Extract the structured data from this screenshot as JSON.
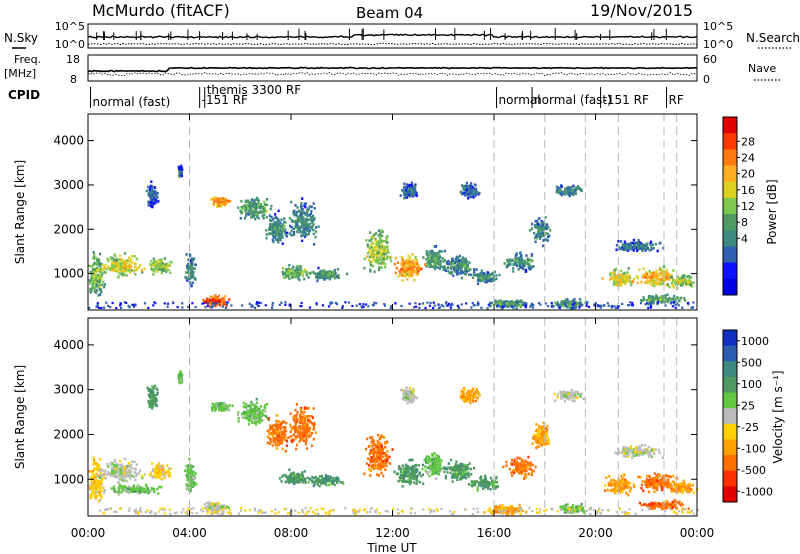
{
  "header": {
    "station": "McMurdo (fitACF)",
    "beam": "Beam 04",
    "date": "19/Nov/2015"
  },
  "noise_panel": {
    "left_label": "N.Sky",
    "right_label": "N.Search",
    "left_ticks": [
      "10^5",
      "10^0"
    ],
    "right_ticks": [
      "10^5",
      "10^0"
    ]
  },
  "freq_panel": {
    "left_label_1": "Freq.",
    "left_label_2": "[MHz]",
    "right_label": "Nave",
    "left_ticks": [
      "18",
      "8"
    ],
    "right_ticks": [
      "60",
      "0"
    ]
  },
  "cpid": {
    "label": "CPID",
    "entries": [
      {
        "text": "normal (fast)",
        "time": 0.1
      },
      {
        "text": "-151 RF",
        "time": 4.4
      },
      {
        "text": "themis 3300 RF",
        "time": 4.6
      },
      {
        "text": "normal",
        "time": 16.1
      },
      {
        "text": "normal (fast)",
        "time": 17.5
      },
      {
        "text": "-151 RF",
        "time": 20.2
      },
      {
        "text": "RF",
        "time": 22.8
      }
    ]
  },
  "time_axis": {
    "label": "Time UT",
    "ticks": [
      "00:00",
      "04:00",
      "08:00",
      "12:00",
      "16:00",
      "20:00",
      "00:00"
    ]
  },
  "chart_data": [
    {
      "type": "heatmap",
      "name": "power",
      "ylabel": "Slant Range [km]",
      "xlim_hours": [
        0,
        24
      ],
      "ylim_km": [
        180,
        4600
      ],
      "yticks": [
        1000,
        2000,
        3000,
        4000
      ],
      "colorbar": {
        "label": "Power [dB]",
        "ticks": [
          "28",
          "24",
          "20",
          "16",
          "12",
          "8",
          "4"
        ],
        "colors": [
          "#e00000",
          "#ff3a00",
          "#ff7a10",
          "#ffae20",
          "#dcd020",
          "#7cc850",
          "#4f9a62",
          "#3d8a80",
          "#3060b0",
          "#1010ff",
          "#0000e0"
        ]
      },
      "blobs": [
        {
          "t": 0.3,
          "r": 1000,
          "dt": 0.5,
          "dr": 700,
          "v": 16
        },
        {
          "t": 1.2,
          "r": 1200,
          "dt": 1.2,
          "dr": 350,
          "v": 20
        },
        {
          "t": 2.8,
          "r": 1200,
          "dt": 0.6,
          "dr": 250,
          "v": 18
        },
        {
          "t": 4.0,
          "r": 1100,
          "dt": 0.3,
          "dr": 500,
          "v": 12
        },
        {
          "t": 2.5,
          "r": 2800,
          "dt": 0.3,
          "dr": 400,
          "v": 10
        },
        {
          "t": 3.6,
          "r": 3300,
          "dt": 0.1,
          "dr": 200,
          "v": 10
        },
        {
          "t": 5.0,
          "r": 400,
          "dt": 0.7,
          "dr": 180,
          "v": 28
        },
        {
          "t": 5.2,
          "r": 2650,
          "dt": 0.6,
          "dr": 150,
          "v": 24
        },
        {
          "t": 6.5,
          "r": 2500,
          "dt": 0.9,
          "dr": 400,
          "v": 14
        },
        {
          "t": 7.4,
          "r": 2050,
          "dt": 0.6,
          "dr": 500,
          "v": 12
        },
        {
          "t": 8.4,
          "r": 2200,
          "dt": 0.8,
          "dr": 650,
          "v": 12
        },
        {
          "t": 8.1,
          "r": 1050,
          "dt": 0.8,
          "dr": 220,
          "v": 16
        },
        {
          "t": 9.3,
          "r": 1000,
          "dt": 1.0,
          "dr": 180,
          "v": 14
        },
        {
          "t": 11.4,
          "r": 1550,
          "dt": 0.7,
          "dr": 700,
          "v": 18
        },
        {
          "t": 12.6,
          "r": 1150,
          "dt": 0.8,
          "dr": 420,
          "v": 24
        },
        {
          "t": 13.6,
          "r": 1350,
          "dt": 0.6,
          "dr": 400,
          "v": 14
        },
        {
          "t": 14.6,
          "r": 1200,
          "dt": 0.8,
          "dr": 350,
          "v": 12
        },
        {
          "t": 15.6,
          "r": 950,
          "dt": 0.8,
          "dr": 230,
          "v": 12
        },
        {
          "t": 17.0,
          "r": 1300,
          "dt": 0.8,
          "dr": 300,
          "v": 12
        },
        {
          "t": 17.8,
          "r": 2000,
          "dt": 0.5,
          "dr": 400,
          "v": 12
        },
        {
          "t": 12.6,
          "r": 2900,
          "dt": 0.5,
          "dr": 250,
          "v": 10
        },
        {
          "t": 15.0,
          "r": 2900,
          "dt": 0.6,
          "dr": 250,
          "v": 10
        },
        {
          "t": 18.9,
          "r": 2900,
          "dt": 0.8,
          "dr": 180,
          "v": 12
        },
        {
          "t": 16.5,
          "r": 350,
          "dt": 1.2,
          "dr": 150,
          "v": 14
        },
        {
          "t": 19.0,
          "r": 350,
          "dt": 0.9,
          "dr": 150,
          "v": 14
        },
        {
          "t": 20.9,
          "r": 900,
          "dt": 0.8,
          "dr": 300,
          "v": 20
        },
        {
          "t": 22.4,
          "r": 950,
          "dt": 1.1,
          "dr": 300,
          "v": 22
        },
        {
          "t": 23.4,
          "r": 850,
          "dt": 0.7,
          "dr": 220,
          "v": 18
        },
        {
          "t": 21.6,
          "r": 1650,
          "dt": 1.3,
          "dr": 200,
          "v": 10
        },
        {
          "t": 22.6,
          "r": 450,
          "dt": 1.3,
          "dr": 150,
          "v": 14
        }
      ]
    },
    {
      "type": "heatmap",
      "name": "velocity",
      "ylabel": "Slant Range [km]",
      "xlim_hours": [
        0,
        24
      ],
      "ylim_km": [
        180,
        4600
      ],
      "yticks": [
        1000,
        2000,
        3000,
        4000
      ],
      "colorbar": {
        "label": "Velocity [m s⁻¹]",
        "ticks": [
          "1000",
          "500",
          "100",
          "25",
          "-25",
          "-100",
          "-500",
          "-1000"
        ],
        "colors": [
          "#1030c0",
          "#2a5db0",
          "#3d8a80",
          "#4f9a62",
          "#60c840",
          "#bcbcbc",
          "#ffd000",
          "#ffa000",
          "#ff7000",
          "#ff3000",
          "#e00000"
        ]
      },
      "blobs": [
        {
          "t": 0.3,
          "r": 1000,
          "dt": 0.5,
          "dr": 700,
          "v": 6
        },
        {
          "t": 1.2,
          "r": 1200,
          "dt": 1.2,
          "dr": 350,
          "v": 5
        },
        {
          "t": 1.8,
          "r": 800,
          "dt": 1.4,
          "dr": 150,
          "v": 4
        },
        {
          "t": 2.8,
          "r": 1200,
          "dt": 0.6,
          "dr": 250,
          "v": 6
        },
        {
          "t": 4.0,
          "r": 1100,
          "dt": 0.3,
          "dr": 500,
          "v": 4
        },
        {
          "t": 2.5,
          "r": 2800,
          "dt": 0.3,
          "dr": 400,
          "v": 3
        },
        {
          "t": 3.6,
          "r": 3300,
          "dt": 0.1,
          "dr": 200,
          "v": 4
        },
        {
          "t": 5.0,
          "r": 400,
          "dt": 0.7,
          "dr": 180,
          "v": 5
        },
        {
          "t": 5.2,
          "r": 2650,
          "dt": 0.6,
          "dr": 150,
          "v": 4
        },
        {
          "t": 6.5,
          "r": 2500,
          "dt": 0.9,
          "dr": 400,
          "v": 4
        },
        {
          "t": 7.4,
          "r": 2050,
          "dt": 0.6,
          "dr": 500,
          "v": 8
        },
        {
          "t": 8.4,
          "r": 2200,
          "dt": 0.8,
          "dr": 650,
          "v": 8
        },
        {
          "t": 8.1,
          "r": 1050,
          "dt": 0.8,
          "dr": 220,
          "v": 3
        },
        {
          "t": 9.3,
          "r": 1000,
          "dt": 1.0,
          "dr": 180,
          "v": 3
        },
        {
          "t": 11.4,
          "r": 1550,
          "dt": 0.7,
          "dr": 700,
          "v": 8
        },
        {
          "t": 12.6,
          "r": 1150,
          "dt": 0.8,
          "dr": 420,
          "v": 3
        },
        {
          "t": 13.6,
          "r": 1350,
          "dt": 0.6,
          "dr": 400,
          "v": 4
        },
        {
          "t": 14.6,
          "r": 1200,
          "dt": 0.8,
          "dr": 350,
          "v": 3
        },
        {
          "t": 15.6,
          "r": 950,
          "dt": 0.8,
          "dr": 230,
          "v": 3
        },
        {
          "t": 17.0,
          "r": 1300,
          "dt": 0.8,
          "dr": 300,
          "v": 8
        },
        {
          "t": 17.8,
          "r": 2000,
          "dt": 0.5,
          "dr": 400,
          "v": 7
        },
        {
          "t": 12.6,
          "r": 2900,
          "dt": 0.5,
          "dr": 250,
          "v": 5
        },
        {
          "t": 15.0,
          "r": 2900,
          "dt": 0.6,
          "dr": 250,
          "v": 7
        },
        {
          "t": 18.9,
          "r": 2900,
          "dt": 0.8,
          "dr": 180,
          "v": 5
        },
        {
          "t": 16.5,
          "r": 350,
          "dt": 1.2,
          "dr": 150,
          "v": 7
        },
        {
          "t": 19.0,
          "r": 350,
          "dt": 0.9,
          "dr": 150,
          "v": 4
        },
        {
          "t": 20.9,
          "r": 900,
          "dt": 0.8,
          "dr": 300,
          "v": 7
        },
        {
          "t": 22.4,
          "r": 950,
          "dt": 1.1,
          "dr": 300,
          "v": 8
        },
        {
          "t": 23.4,
          "r": 850,
          "dt": 0.7,
          "dr": 220,
          "v": 7
        },
        {
          "t": 21.6,
          "r": 1650,
          "dt": 1.3,
          "dr": 200,
          "v": 5
        },
        {
          "t": 22.6,
          "r": 450,
          "dt": 1.3,
          "dr": 150,
          "v": 8
        }
      ]
    }
  ],
  "dashed_markers_hours": [
    4.0,
    16.0,
    18.0,
    19.6,
    20.9,
    22.7,
    23.2
  ]
}
